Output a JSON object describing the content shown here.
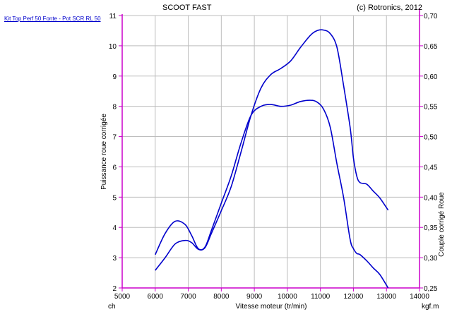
{
  "legend_link": "Kit Top Perf 50 Fonte - Pot SCR RL 50",
  "chart_data": {
    "type": "line",
    "title": "SCOOT FAST",
    "copyright": "(c) Rotronics, 2012",
    "xlabel": "Vitesse moteur (tr/min)",
    "ylabel_left": "Puissance roue corrigée",
    "ylabel_right": "Couple corrigé Roue",
    "unit_left": "ch",
    "unit_right": "kgf.m",
    "xlim": [
      5000,
      14000
    ],
    "xticks": [
      "5000",
      "6000",
      "7000",
      "8000",
      "9000",
      "10000",
      "11000",
      "12000",
      "13000",
      "14000"
    ],
    "ylim_left": [
      2,
      11
    ],
    "yticks_left": [
      "2",
      "3",
      "4",
      "5",
      "6",
      "7",
      "8",
      "9",
      "10",
      "11"
    ],
    "ylim_right": [
      0.25,
      0.7
    ],
    "yticks_right": [
      "0,25",
      "0,30",
      "0,35",
      "0,40",
      "0,45",
      "0,50",
      "0,55",
      "0,60",
      "0,65",
      "0,70"
    ],
    "grid": true,
    "colors": {
      "series": "#0000cc",
      "axis": "#cc00cc",
      "grid": "#bdbdbd"
    },
    "series": [
      {
        "axis": "left",
        "x": [
          6000,
          6300,
          6600,
          6900,
          7100,
          7300,
          7500,
          7700,
          8000,
          8300,
          8600,
          8900,
          9200,
          9500,
          9800,
          10100,
          10400,
          10700,
          10900,
          11100,
          11300,
          11500,
          11700,
          11900,
          12000,
          12100,
          12200,
          12400,
          12600,
          12800,
          13050
        ],
        "values": [
          2.58,
          3.0,
          3.45,
          3.57,
          3.5,
          3.28,
          3.32,
          3.8,
          4.55,
          5.35,
          6.5,
          7.7,
          8.6,
          9.05,
          9.25,
          9.5,
          9.95,
          10.35,
          10.5,
          10.52,
          10.4,
          9.95,
          8.7,
          7.3,
          6.3,
          5.7,
          5.48,
          5.43,
          5.2,
          4.97,
          4.57
        ]
      },
      {
        "axis": "right",
        "x": [
          6000,
          6300,
          6600,
          6900,
          7100,
          7300,
          7500,
          7700,
          8000,
          8300,
          8600,
          8900,
          9200,
          9500,
          9800,
          10100,
          10400,
          10700,
          10900,
          11100,
          11300,
          11500,
          11700,
          11900,
          12000,
          12100,
          12200,
          12400,
          12600,
          12800,
          13050
        ],
        "values": [
          0.305,
          0.34,
          0.36,
          0.355,
          0.337,
          0.315,
          0.317,
          0.345,
          0.39,
          0.435,
          0.49,
          0.535,
          0.55,
          0.553,
          0.55,
          0.552,
          0.558,
          0.56,
          0.557,
          0.545,
          0.515,
          0.455,
          0.4,
          0.33,
          0.315,
          0.307,
          0.305,
          0.295,
          0.283,
          0.272,
          0.25
        ]
      }
    ]
  }
}
